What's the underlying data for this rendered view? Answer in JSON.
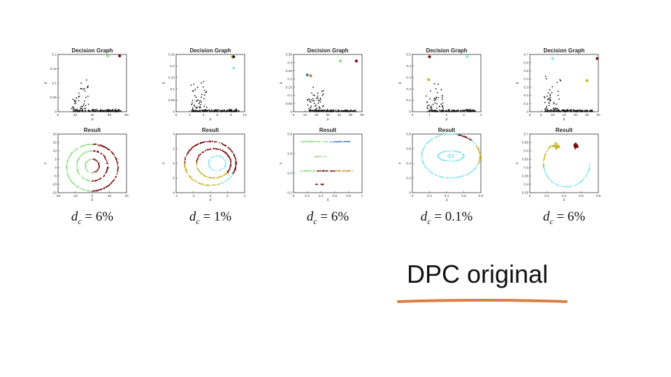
{
  "slide": {
    "title": "DPC original",
    "underline_color": "#d98044"
  },
  "colors": {
    "black": "#111111",
    "green": "#90e080",
    "maroon": "#7a0f0f",
    "cyan": "#8fe6f0",
    "blue": "#3a7cc0",
    "orange": "#c8861c",
    "gold": "#c8b424"
  },
  "panels": [
    {
      "dc_label": "6%",
      "decision_graph": {
        "title": "Decision Graph",
        "xlabel": "ρ",
        "ylabel": "δ",
        "xlim": [
          0,
          80
        ],
        "ylim": [
          0,
          0.2
        ],
        "xticks": [
          "0",
          "20",
          "40",
          "60",
          "80"
        ],
        "yticks": [
          "0",
          "0.05",
          "0.1",
          "0.15",
          "0.2"
        ],
        "centers": [
          {
            "x": 58,
            "y": 0.195,
            "color": "green"
          },
          {
            "x": 72,
            "y": 0.195,
            "color": "maroon"
          }
        ]
      },
      "result": {
        "title": "Result",
        "xlabel": "X",
        "ylabel": "Y",
        "xlim": [
          -20,
          20
        ],
        "ylim": [
          -15,
          20
        ],
        "xticks": [
          "-20",
          "-10",
          "0",
          "10",
          "20"
        ],
        "yticks": [
          "-15",
          "-10",
          "-5",
          "0",
          "5",
          "10",
          "15",
          "20"
        ],
        "clusters": [
          {
            "shape": "arc",
            "cx": 0,
            "cy": 0,
            "rx": 15,
            "ry": 14,
            "a0": -90,
            "a1": 90,
            "color": "maroon"
          },
          {
            "shape": "arc",
            "cx": 0,
            "cy": 0,
            "rx": 15,
            "ry": 14,
            "a0": 90,
            "a1": 270,
            "color": "green"
          },
          {
            "shape": "arc",
            "cx": 0,
            "cy": 1,
            "rx": 9,
            "ry": 9,
            "a0": -90,
            "a1": 90,
            "color": "maroon"
          },
          {
            "shape": "arc",
            "cx": 0,
            "cy": 1,
            "rx": 9,
            "ry": 9,
            "a0": 90,
            "a1": 270,
            "color": "green"
          },
          {
            "shape": "arc",
            "cx": 0,
            "cy": 1,
            "rx": 4,
            "ry": 4,
            "a0": -90,
            "a1": 90,
            "color": "maroon"
          },
          {
            "shape": "arc",
            "cx": 0,
            "cy": 1,
            "rx": 4,
            "ry": 4,
            "a0": 90,
            "a1": 270,
            "color": "green"
          }
        ]
      }
    },
    {
      "dc_label": "1%",
      "decision_graph": {
        "title": "Decision Graph",
        "xlabel": "ρ",
        "ylabel": "δ",
        "xlim": [
          0,
          10
        ],
        "ylim": [
          0,
          0.25
        ],
        "xticks": [
          "0",
          "2",
          "4",
          "6",
          "8",
          "10"
        ],
        "yticks": [
          "0",
          "0.05",
          "0.1",
          "0.15",
          "0.2",
          "0.25"
        ],
        "centers": [
          {
            "x": 8.3,
            "y": 0.24,
            "color": "maroon"
          },
          {
            "x": 8.2,
            "y": 0.24,
            "color": "gold"
          },
          {
            "x": 8.4,
            "y": 0.24,
            "color": "black"
          },
          {
            "x": 8.4,
            "y": 0.19,
            "color": "cyan"
          }
        ]
      },
      "result": {
        "title": "Result",
        "xlabel": "X",
        "ylabel": "Y",
        "xlim": [
          -4,
          4
        ],
        "ylim": [
          -4,
          4
        ],
        "xticks": [
          "-4",
          "-2",
          "0",
          "2",
          "4"
        ],
        "yticks": [
          "-4",
          "-2",
          "0",
          "2",
          "4"
        ],
        "clusters": [
          {
            "shape": "arc",
            "cx": 0,
            "cy": 0,
            "rx": 3,
            "ry": 3,
            "a0": -30,
            "a1": 180,
            "color": "maroon"
          },
          {
            "shape": "arc",
            "cx": 0,
            "cy": 0,
            "rx": 3,
            "ry": 3,
            "a0": 180,
            "a1": 290,
            "color": "gold"
          },
          {
            "shape": "arc",
            "cx": 0,
            "cy": 0,
            "rx": 3,
            "ry": 3,
            "a0": 290,
            "a1": 330,
            "color": "cyan"
          },
          {
            "shape": "arc",
            "cx": 0.4,
            "cy": 0,
            "rx": 2,
            "ry": 2,
            "a0": -40,
            "a1": 180,
            "color": "maroon"
          },
          {
            "shape": "arc",
            "cx": 0.4,
            "cy": 0,
            "rx": 2,
            "ry": 2,
            "a0": 180,
            "a1": 320,
            "color": "gold"
          },
          {
            "shape": "arc",
            "cx": 0.8,
            "cy": 0,
            "rx": 1,
            "ry": 1,
            "a0": 0,
            "a1": 360,
            "color": "cyan"
          }
        ]
      }
    },
    {
      "dc_label": "6%",
      "decision_graph": {
        "title": "Decision Graph",
        "xlabel": "ρ",
        "ylabel": "δ",
        "xlim": [
          0,
          60
        ],
        "ylim": [
          0,
          0.35
        ],
        "xticks": [
          "0",
          "10",
          "20",
          "30",
          "40",
          "50",
          "60"
        ],
        "yticks": [
          "0",
          "0.05",
          "0.1",
          "0.15",
          "0.2",
          "0.25",
          "0.3",
          "0.35"
        ],
        "centers": [
          {
            "x": 12,
            "y": 0.225,
            "color": "blue"
          },
          {
            "x": 15,
            "y": 0.22,
            "color": "orange"
          },
          {
            "x": 41,
            "y": 0.31,
            "color": "green"
          },
          {
            "x": 55,
            "y": 0.31,
            "color": "maroon"
          }
        ]
      },
      "result": {
        "title": "Result",
        "xlabel": "X",
        "ylabel": "Y",
        "xlim": [
          0,
          1
        ],
        "ylim": [
          0.2,
          0.9
        ],
        "xticks": [
          "0",
          "0.2",
          "0.4",
          "0.6",
          "0.8",
          "1"
        ],
        "yticks": [
          "0.2",
          "0.4",
          "0.6",
          "0.8"
        ],
        "clusters": [
          {
            "shape": "band",
            "x0": 0.1,
            "x1": 0.52,
            "y": 0.81,
            "color": "green"
          },
          {
            "shape": "band",
            "x0": 0.52,
            "x1": 0.82,
            "y": 0.81,
            "color": "blue"
          },
          {
            "shape": "band",
            "x0": 0.3,
            "x1": 0.48,
            "y": 0.63,
            "color": "green"
          },
          {
            "shape": "band",
            "x0": 0.1,
            "x1": 0.35,
            "y": 0.46,
            "color": "green"
          },
          {
            "shape": "band",
            "x0": 0.35,
            "x1": 0.6,
            "y": 0.46,
            "color": "maroon"
          },
          {
            "shape": "band",
            "x0": 0.6,
            "x1": 0.86,
            "y": 0.46,
            "color": "orange"
          },
          {
            "shape": "band",
            "x0": 0.32,
            "x1": 0.45,
            "y": 0.3,
            "color": "maroon"
          }
        ]
      }
    },
    {
      "dc_label": "0.1%",
      "decision_graph": {
        "title": "Decision Graph",
        "xlabel": "ρ",
        "ylabel": "δ",
        "xlim": [
          0,
          4
        ],
        "ylim": [
          0,
          0.5
        ],
        "xticks": [
          "0",
          "1",
          "2",
          "3",
          "4"
        ],
        "yticks": [
          "0",
          "0.1",
          "0.2",
          "0.3",
          "0.4",
          "0.5"
        ],
        "centers": [
          {
            "x": 1.0,
            "y": 0.48,
            "color": "maroon"
          },
          {
            "x": 3.2,
            "y": 0.48,
            "color": "cyan"
          },
          {
            "x": 0.95,
            "y": 0.28,
            "color": "gold"
          }
        ]
      },
      "result": {
        "title": "Result",
        "xlabel": "X",
        "ylabel": "Y",
        "xlim": [
          0,
          0.8
        ],
        "ylim": [
          0,
          0.8
        ],
        "xticks": [
          "0",
          "0.2",
          "0.4",
          "0.6",
          "0.8"
        ],
        "yticks": [
          "0",
          "0.2",
          "0.4",
          "0.6",
          "0.8"
        ],
        "clusters": [
          {
            "shape": "arc",
            "cx": 0.45,
            "cy": 0.5,
            "rx": 0.34,
            "ry": 0.3,
            "a0": 30,
            "a1": 340,
            "color": "cyan"
          },
          {
            "shape": "arc",
            "cx": 0.45,
            "cy": 0.5,
            "rx": 0.34,
            "ry": 0.3,
            "a0": 340,
            "a1": 390,
            "color": "gold"
          },
          {
            "shape": "arc",
            "cx": 0.45,
            "cy": 0.5,
            "rx": 0.34,
            "ry": 0.3,
            "a0": 45,
            "a1": 75,
            "color": "maroon"
          },
          {
            "shape": "arc",
            "cx": 0.45,
            "cy": 0.5,
            "rx": 0.15,
            "ry": 0.07,
            "a0": 0,
            "a1": 360,
            "color": "cyan"
          },
          {
            "shape": "arc",
            "cx": 0.45,
            "cy": 0.5,
            "rx": 0.03,
            "ry": 0.02,
            "a0": 0,
            "a1": 360,
            "color": "cyan"
          }
        ]
      }
    },
    {
      "dc_label": "6%",
      "decision_graph": {
        "title": "Decision Graph",
        "xlabel": "ρ",
        "ylabel": "δ",
        "xlim": [
          0,
          30
        ],
        "ylim": [
          0,
          0.7
        ],
        "xticks": [
          "0",
          "5",
          "10",
          "15",
          "20",
          "25",
          "30"
        ],
        "yticks": [
          "0",
          "0.1",
          "0.2",
          "0.3",
          "0.4",
          "0.5",
          "0.6",
          "0.7"
        ],
        "centers": [
          {
            "x": 10,
            "y": 0.65,
            "color": "cyan"
          },
          {
            "x": 29.5,
            "y": 0.65,
            "color": "maroon"
          },
          {
            "x": 25,
            "y": 0.38,
            "color": "gold"
          }
        ]
      },
      "result": {
        "title": "Result",
        "xlabel": "X",
        "ylabel": "Y",
        "xlim": [
          0,
          0.8
        ],
        "ylim": [
          0.3,
          0.7
        ],
        "xticks": [
          "0",
          "0.2",
          "0.4",
          "0.6",
          "0.8"
        ],
        "yticks": [
          "0.35",
          "0.4",
          "0.45",
          "0.5",
          "0.55",
          "0.6",
          "0.65",
          "0.7"
        ],
        "clusters": [
          {
            "shape": "arc",
            "cx": 0.43,
            "cy": 0.5,
            "rx": 0.27,
            "ry": 0.16,
            "a0": 190,
            "a1": 360,
            "color": "cyan"
          },
          {
            "shape": "blob",
            "cx": 0.31,
            "cy": 0.62,
            "rx": 0.06,
            "ry": 0.03,
            "color": "gold"
          },
          {
            "shape": "blob",
            "cx": 0.54,
            "cy": 0.62,
            "rx": 0.04,
            "ry": 0.025,
            "color": "maroon"
          },
          {
            "shape": "arc",
            "cx": 0.43,
            "cy": 0.5,
            "rx": 0.27,
            "ry": 0.16,
            "a0": 130,
            "a1": 190,
            "color": "gold"
          }
        ]
      }
    }
  ]
}
